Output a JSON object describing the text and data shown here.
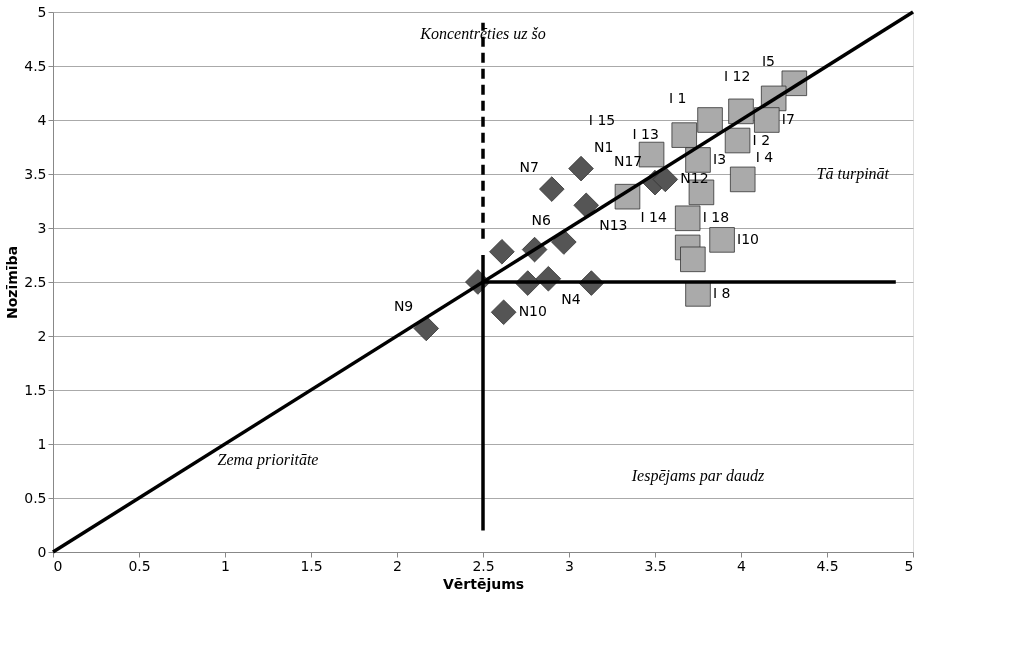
{
  "chart_data": {
    "type": "scatter",
    "xlabel": "Vērtējums",
    "ylabel": "Nozīmība",
    "xlim": [
      0,
      5
    ],
    "ylim": [
      0,
      5
    ],
    "xticks": [
      0,
      0.5,
      1,
      1.5,
      2,
      2.5,
      3,
      3.5,
      4,
      4.5,
      5
    ],
    "yticks": [
      0,
      0.5,
      1,
      1.5,
      2,
      2.5,
      3,
      3.5,
      4,
      4.5,
      5
    ],
    "grid": "y",
    "series": [
      {
        "type": "line",
        "color": "#000000",
        "x": [
          0,
          5
        ],
        "values": [
          0,
          5
        ],
        "line_style": "solid"
      },
      {
        "type": "line",
        "color": "#000000",
        "x": [
          2.5,
          2.5
        ],
        "values": [
          2.9,
          4.9
        ],
        "line_style": "dashed"
      },
      {
        "type": "line",
        "color": "#000000",
        "x": [
          2.5,
          2.5
        ],
        "values": [
          0.2,
          2.75
        ],
        "line_style": "solid"
      },
      {
        "type": "line",
        "color": "#000000",
        "x": [
          2.5,
          4.9
        ],
        "values": [
          2.5,
          2.5
        ],
        "line_style": "solid"
      },
      {
        "marker": "diamond",
        "color": "#555555",
        "x": [
          2.17,
          2.62,
          2.47,
          2.61,
          2.8,
          2.76,
          2.88,
          3.13,
          2.97,
          2.9,
          3.07,
          3.1,
          3.5,
          3.56
        ],
        "values": [
          2.07,
          2.22,
          2.5,
          2.78,
          2.8,
          2.49,
          2.53,
          2.49,
          2.87,
          3.36,
          3.55,
          3.21,
          3.42,
          3.45
        ],
        "value_labels": [
          "N9",
          "N10",
          null,
          null,
          null,
          null,
          "N4",
          null,
          "N6",
          "N7",
          "N1",
          "N13",
          "N17",
          "N12"
        ]
      },
      {
        "marker": "square",
        "color": "#aaaaaa",
        "x": [
          4.31,
          4.19,
          4.15,
          4.0,
          3.82,
          3.67,
          3.48,
          3.75,
          3.98,
          4.01,
          3.77,
          3.69,
          3.34,
          3.89,
          3.69,
          3.72,
          3.75
        ],
        "values": [
          4.34,
          4.2,
          4.0,
          4.08,
          4.0,
          3.86,
          3.68,
          3.63,
          3.81,
          3.45,
          3.33,
          3.09,
          3.29,
          2.89,
          2.82,
          2.71,
          2.39
        ],
        "value_labels": [
          "I5",
          "I 12",
          "I7",
          null,
          "I 1",
          "I 13",
          "I 15",
          "I3",
          "I 2",
          "I 4",
          null,
          "I 18",
          "I 14",
          "I10",
          null,
          null,
          "I 8"
        ]
      }
    ],
    "annotations": [
      "Koncentrēties  uz šo",
      "Tā turpināt",
      "Zema prioritāte",
      "Iespējams par daudz"
    ]
  }
}
